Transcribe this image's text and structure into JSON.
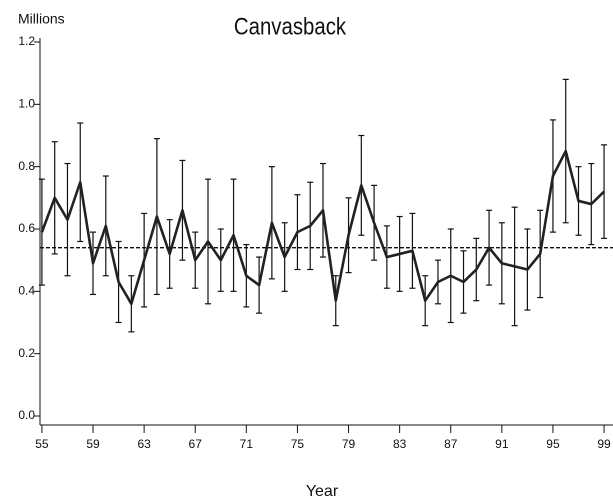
{
  "chart_data": {
    "type": "line",
    "title": "Canvasback",
    "y_label": "Millions",
    "x_label": "Year",
    "x": [
      55,
      56,
      57,
      58,
      59,
      60,
      61,
      62,
      63,
      64,
      65,
      66,
      67,
      68,
      69,
      70,
      71,
      72,
      73,
      74,
      75,
      76,
      77,
      78,
      79,
      80,
      81,
      82,
      83,
      84,
      85,
      86,
      87,
      88,
      89,
      90,
      91,
      92,
      93,
      94,
      95,
      96,
      97,
      98,
      99
    ],
    "series": [
      {
        "color": "#222222",
        "values": [
          0.59,
          0.7,
          0.63,
          0.75,
          0.49,
          0.61,
          0.43,
          0.36,
          0.5,
          0.64,
          0.52,
          0.66,
          0.5,
          0.56,
          0.5,
          0.58,
          0.45,
          0.42,
          0.62,
          0.51,
          0.59,
          0.61,
          0.66,
          0.37,
          0.58,
          0.74,
          0.62,
          0.51,
          0.52,
          0.53,
          0.37,
          0.43,
          0.45,
          0.43,
          0.47,
          0.54,
          0.49,
          0.48,
          0.47,
          0.52,
          0.77,
          0.85,
          0.69,
          0.68,
          0.72
        ],
        "errors": [
          0.17,
          0.18,
          0.18,
          0.19,
          0.1,
          0.16,
          0.13,
          0.09,
          0.15,
          0.25,
          0.11,
          0.16,
          0.09,
          0.2,
          0.1,
          0.18,
          0.1,
          0.09,
          0.18,
          0.11,
          0.12,
          0.14,
          0.15,
          0.08,
          0.12,
          0.16,
          0.12,
          0.1,
          0.12,
          0.12,
          0.08,
          0.07,
          0.15,
          0.1,
          0.1,
          0.12,
          0.13,
          0.19,
          0.13,
          0.14,
          0.18,
          0.23,
          0.11,
          0.13,
          0.15
        ]
      }
    ],
    "reference_line": 0.54,
    "xlim": [
      54.85,
      99.7
    ],
    "xticks": [
      55,
      59,
      63,
      67,
      71,
      75,
      79,
      83,
      87,
      91,
      95,
      99
    ],
    "ylim": [
      0,
      1.2
    ],
    "yticks": [
      {
        "value": 0,
        "label": "0.0"
      },
      0.2,
      0.4,
      0.6,
      0.8,
      {
        "value": 1,
        "label": "1.0"
      },
      1.2
    ],
    "grid": false
  }
}
